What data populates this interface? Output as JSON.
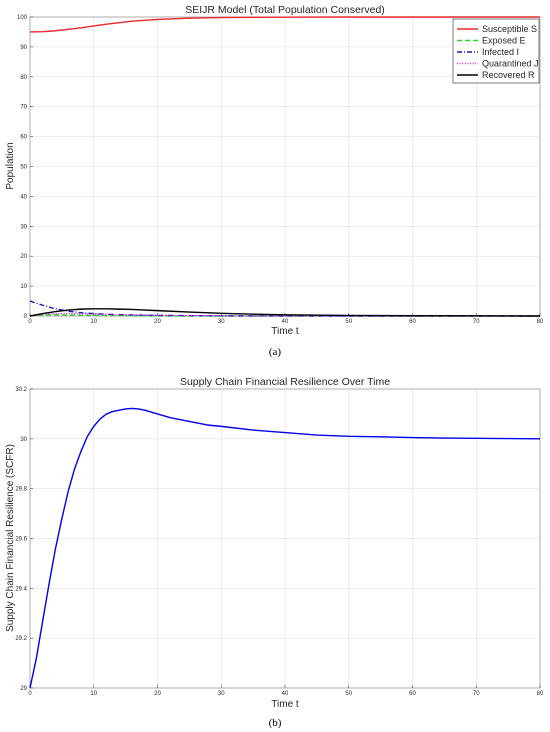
{
  "chart_data": [
    {
      "type": "line",
      "title": "SEIJR Model (Total Population Conserved)",
      "xlabel": "Time t",
      "ylabel": "Population",
      "xlim": [
        0,
        80
      ],
      "ylim": [
        0,
        100
      ],
      "xticks": [
        0,
        10,
        20,
        30,
        40,
        50,
        60,
        70,
        80
      ],
      "yticks": [
        0,
        10,
        20,
        30,
        40,
        50,
        60,
        70,
        80,
        90,
        100
      ],
      "grid": true,
      "legend_position": "top-right",
      "caption": "(a)",
      "x": [
        0,
        2,
        4,
        6,
        8,
        10,
        12,
        14,
        16,
        18,
        20,
        25,
        30,
        35,
        40,
        50,
        60,
        70,
        80
      ],
      "series": [
        {
          "name": "Susceptible S",
          "color": "#e8282b",
          "dash": "solid",
          "values": [
            95,
            95.1,
            95.4,
            95.9,
            96.4,
            97.0,
            97.6,
            98.1,
            98.6,
            98.9,
            99.2,
            99.6,
            99.8,
            99.9,
            99.95,
            100,
            100,
            100,
            100
          ]
        },
        {
          "name": "Exposed E",
          "color": "#22dd22",
          "dash": "dashed",
          "values": [
            0,
            0.4,
            0.4,
            0.3,
            0.25,
            0.2,
            0.15,
            0.1,
            0.08,
            0.05,
            0.03,
            0.01,
            0,
            0,
            0,
            0,
            0,
            0,
            0
          ]
        },
        {
          "name": "Infected I",
          "color": "#1515c8",
          "dash": "dashdot",
          "values": [
            5,
            3.6,
            2.4,
            1.6,
            1.1,
            0.8,
            0.6,
            0.45,
            0.35,
            0.27,
            0.2,
            0.1,
            0.05,
            0.02,
            0.01,
            0,
            0,
            0,
            0
          ]
        },
        {
          "name": "Quarantined J",
          "color": "#dd22dd",
          "dash": "dotted",
          "values": [
            0,
            0.6,
            0.8,
            0.8,
            0.7,
            0.6,
            0.5,
            0.42,
            0.35,
            0.3,
            0.25,
            0.15,
            0.08,
            0.04,
            0.02,
            0,
            0,
            0,
            0
          ]
        },
        {
          "name": "Recovered R",
          "color": "#000000",
          "dash": "solid",
          "values": [
            0,
            0.8,
            1.5,
            2.0,
            2.3,
            2.4,
            2.4,
            2.3,
            2.2,
            2.0,
            1.8,
            1.3,
            0.9,
            0.6,
            0.4,
            0.2,
            0.1,
            0.05,
            0
          ]
        }
      ]
    },
    {
      "type": "line",
      "title": "Supply Chain Financial Resilience Over Time",
      "xlabel": "Time t",
      "ylabel": "Supply Chain Financial Resilience (SCFR)",
      "xlim": [
        0,
        80
      ],
      "ylim": [
        29,
        30.2
      ],
      "xticks": [
        0,
        10,
        20,
        30,
        40,
        50,
        60,
        70,
        80
      ],
      "yticks": [
        29,
        29.2,
        29.4,
        29.6,
        29.8,
        30,
        30.2
      ],
      "grid": true,
      "caption": "(b)",
      "x": [
        0,
        1,
        2,
        3,
        4,
        5,
        6,
        7,
        8,
        9,
        10,
        11,
        12,
        13,
        14,
        15,
        16,
        17,
        18,
        20,
        22,
        25,
        28,
        30,
        35,
        40,
        45,
        50,
        55,
        60,
        65,
        70,
        75,
        80
      ],
      "series": [
        {
          "name": "",
          "color": "#0000ee",
          "dash": "solid",
          "values": [
            29.0,
            29.12,
            29.27,
            29.42,
            29.56,
            29.68,
            29.79,
            29.88,
            29.95,
            30.01,
            30.05,
            30.08,
            30.1,
            30.11,
            30.115,
            30.12,
            30.122,
            30.12,
            30.115,
            30.1,
            30.085,
            30.07,
            30.055,
            30.05,
            30.035,
            30.025,
            30.015,
            30.01,
            30.008,
            30.005,
            30.003,
            30.002,
            30.001,
            30.0
          ]
        }
      ]
    }
  ]
}
